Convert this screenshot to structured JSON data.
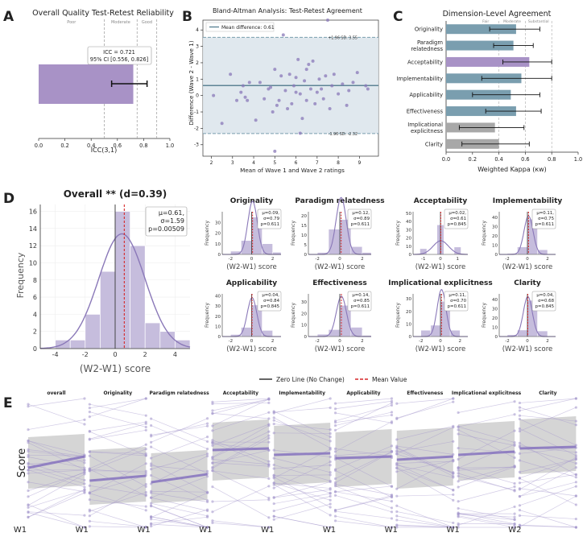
{
  "colors": {
    "purple": "#a892c6",
    "purple_dark": "#8a78b8",
    "purple_fill": "#c6bddd",
    "teal": "#7a9eaf",
    "gray": "#a8a8a8",
    "red": "#d62728",
    "band": "#dde6ec",
    "pair_fill": "#d0d0d0"
  },
  "panel_labels": {
    "a": "A",
    "b": "B",
    "c": "C",
    "d": "D",
    "e": "E"
  },
  "chart_data": [
    {
      "id": "A",
      "type": "bar",
      "title": "Overall Quality Test-Retest Reliability",
      "xlabel": "ICC(3,1)",
      "xlim": [
        0.0,
        1.0
      ],
      "xticks": [
        "0.0",
        "0.2",
        "0.4",
        "0.6",
        "0.8",
        "1.0"
      ],
      "zones": [
        {
          "label": "Poor",
          "from": 0.0,
          "to": 0.5
        },
        {
          "label": "Moderate",
          "from": 0.5,
          "to": 0.75
        },
        {
          "label": "Good",
          "from": 0.75,
          "to": 0.9
        }
      ],
      "zone_lines": [
        0.5,
        0.75,
        0.9
      ],
      "value": 0.721,
      "ci": [
        0.556,
        0.826
      ],
      "annotation": [
        "ICC = 0.721",
        "95% CI [0.556, 0.826]"
      ]
    },
    {
      "id": "B",
      "type": "scatter",
      "title": "Bland-Altman Analysis: Test-Retest Agreement",
      "xlabel": "Mean of Wave 1 and Wave 2 ratings",
      "ylabel": "Difference (Wave 2 - Wave 1)",
      "xlim": [
        1.6,
        9.9
      ],
      "ylim": [
        -3.7,
        4.6
      ],
      "xticks": [
        2,
        3,
        4,
        5,
        6,
        7,
        8,
        9
      ],
      "yticks": [
        -3,
        -2,
        -1,
        0,
        1,
        2,
        3,
        4
      ],
      "mean_diff": 0.61,
      "upper_loa": 3.55,
      "lower_loa": -2.32,
      "legend": "Mean difference: 0.61",
      "upper_label": "+1.96 SD: 3.55",
      "lower_label": "-1.96 SD: -2.32",
      "points": [
        [
          2.1,
          0.0
        ],
        [
          2.5,
          -1.7
        ],
        [
          2.9,
          1.3
        ],
        [
          3.2,
          -0.3
        ],
        [
          3.4,
          0.2
        ],
        [
          3.6,
          -0.1
        ],
        [
          3.8,
          0.8
        ],
        [
          3.7,
          -0.3
        ],
        [
          4.1,
          -1.5
        ],
        [
          4.3,
          0.8
        ],
        [
          4.5,
          -0.2
        ],
        [
          4.7,
          0.4
        ],
        [
          4.9,
          -1.0
        ],
        [
          4.8,
          0.5
        ],
        [
          5.0,
          1.6
        ],
        [
          5.1,
          -0.6
        ],
        [
          5.2,
          -0.3
        ],
        [
          5.3,
          1.2
        ],
        [
          5.4,
          3.7
        ],
        [
          5.5,
          0.3
        ],
        [
          5.6,
          -0.8
        ],
        [
          5.7,
          1.3
        ],
        [
          5.8,
          -0.5
        ],
        [
          5.9,
          0.6
        ],
        [
          6.0,
          1.1
        ],
        [
          6.0,
          0.2
        ],
        [
          6.1,
          2.2
        ],
        [
          6.2,
          0.1
        ],
        [
          6.3,
          -1.4
        ],
        [
          6.4,
          0.9
        ],
        [
          6.5,
          -0.3
        ],
        [
          6.6,
          1.9
        ],
        [
          6.7,
          0.4
        ],
        [
          6.8,
          2.1
        ],
        [
          6.9,
          -0.5
        ],
        [
          7.0,
          0.2
        ],
        [
          7.1,
          1.0
        ],
        [
          7.2,
          0.4
        ],
        [
          7.3,
          -0.2
        ],
        [
          7.4,
          1.2
        ],
        [
          7.5,
          4.6
        ],
        [
          7.6,
          -0.8
        ],
        [
          7.7,
          0.6
        ],
        [
          7.8,
          1.3
        ],
        [
          8.0,
          0.1
        ],
        [
          8.2,
          0.7
        ],
        [
          8.4,
          -0.6
        ],
        [
          8.5,
          0.3
        ],
        [
          8.7,
          0.8
        ],
        [
          8.9,
          1.4
        ],
        [
          9.3,
          0.6
        ],
        [
          9.4,
          0.4
        ],
        [
          5.0,
          -3.4
        ],
        [
          6.2,
          -2.3
        ],
        [
          6.5,
          1.6
        ],
        [
          3.5,
          0.6
        ]
      ]
    },
    {
      "id": "C",
      "type": "bar",
      "title": "Dimension-Level Agreement",
      "xlabel": "Weighted Kappa (κw)",
      "xlim": [
        0.0,
        1.0
      ],
      "xticks": [
        "0.0",
        "0.2",
        "0.4",
        "0.6",
        "0.8",
        "1.0"
      ],
      "zones": [
        {
          "label": "Fair",
          "at": 0.3
        },
        {
          "label": "Moderate",
          "at": 0.5
        },
        {
          "label": "Substantial",
          "at": 0.7
        }
      ],
      "zone_lines": [
        0.4,
        0.6,
        0.8
      ],
      "categories": [
        "Originality",
        "Paradigm\nrelatedness",
        "Acceptability",
        "Implementability",
        "Applicability",
        "Effectiveness",
        "Implicational\nexplicitness",
        "Clarity"
      ],
      "values": [
        0.53,
        0.51,
        0.63,
        0.57,
        0.49,
        0.53,
        0.37,
        0.4
      ],
      "ci_low": [
        0.33,
        0.36,
        0.43,
        0.27,
        0.2,
        0.3,
        0.1,
        0.12
      ],
      "ci_high": [
        0.71,
        0.66,
        0.8,
        0.8,
        0.71,
        0.72,
        0.59,
        0.63
      ],
      "colors": [
        "teal",
        "teal",
        "purple",
        "teal",
        "teal",
        "teal",
        "gray",
        "gray"
      ]
    },
    {
      "id": "D_main",
      "type": "bar",
      "title": "Overall ** (d=0.39)",
      "xlabel": "(W2-W1) score",
      "ylabel": "Frequency",
      "xlim": [
        -5,
        5
      ],
      "ylim": [
        0,
        16.8
      ],
      "xticks": [
        -4,
        -2,
        0,
        2,
        4
      ],
      "yticks": [
        0,
        2,
        4,
        6,
        8,
        10,
        12,
        14,
        16
      ],
      "bins": [
        [
          -4,
          -3,
          1
        ],
        [
          -3,
          -2,
          1
        ],
        [
          -2,
          -1,
          4
        ],
        [
          -1,
          0,
          9
        ],
        [
          0,
          1,
          16
        ],
        [
          1,
          2,
          12
        ],
        [
          2,
          3,
          3
        ],
        [
          3,
          4,
          2
        ],
        [
          4,
          5,
          1
        ]
      ],
      "mean": 0.61,
      "stats": [
        "μ=0.61,",
        "σ=1.59",
        "p=0.00509"
      ]
    },
    {
      "id": "D_small",
      "type": "bar",
      "xlabel": "(W2-W1) score",
      "ylabel": "Frequency",
      "panels": [
        {
          "title": "Originality",
          "xlim": [
            -2.8,
            2.8
          ],
          "xticks": [
            -2,
            0,
            2
          ],
          "ymax": 40,
          "yticks": [
            0,
            10,
            20,
            30
          ],
          "bins": [
            [
              -2,
              -1,
              3
            ],
            [
              -1,
              0,
              13
            ],
            [
              0,
              1,
              35
            ],
            [
              1,
              2,
              10
            ],
            [
              2,
              2.8,
              2
            ]
          ],
          "stats": [
            "μ=0.09,",
            "σ=0.79",
            "p=0.611"
          ],
          "mean": 0.09
        },
        {
          "title": "Paradigm relatedness",
          "xlim": [
            -2.8,
            2.8
          ],
          "xticks": [
            -2,
            0,
            2
          ],
          "ymax": 22,
          "yticks": [
            0,
            5,
            10,
            15,
            20
          ],
          "bins": [
            [
              -2,
              -1,
              1
            ],
            [
              -1,
              0,
              13
            ],
            [
              0,
              1,
              18
            ],
            [
              1,
              2,
              4
            ],
            [
              2,
              2.8,
              1
            ]
          ],
          "stats": [
            "μ=0.12,",
            "σ=0.89",
            "p=0.611"
          ],
          "mean": 0.12
        },
        {
          "title": "Acceptability",
          "xlim": [
            -1.6,
            1.6
          ],
          "xticks": [
            -1,
            0,
            1
          ],
          "ymax": 52,
          "yticks": [
            0,
            10,
            20,
            30,
            40,
            50
          ],
          "bins": [
            [
              -1.2,
              -0.8,
              7
            ],
            [
              -0.2,
              0.2,
              36
            ],
            [
              0.8,
              1.2,
              9
            ]
          ],
          "stats": [
            "μ=0.02,",
            "σ=0.61",
            "p=0.845"
          ],
          "mean": 0.02
        },
        {
          "title": "Implementability",
          "xlim": [
            -2.8,
            2.8
          ],
          "xticks": [
            -2,
            0,
            2
          ],
          "ymax": 46,
          "yticks": [
            0,
            10,
            20,
            30,
            40
          ],
          "bins": [
            [
              -2,
              -1,
              1
            ],
            [
              -1,
              0,
              8
            ],
            [
              0,
              1,
              38
            ],
            [
              1,
              2,
              5
            ]
          ],
          "stats": [
            "μ=0.11,",
            "σ=0.75",
            "p=0.611"
          ],
          "mean": 0.11
        },
        {
          "title": "Applicability",
          "xlim": [
            -2.8,
            2.8
          ],
          "xticks": [
            -2,
            0,
            2
          ],
          "ymax": 42,
          "yticks": [
            0,
            10,
            20,
            30,
            40
          ],
          "bins": [
            [
              -2,
              -1,
              2
            ],
            [
              -1,
              0,
              9
            ],
            [
              0,
              1,
              31
            ],
            [
              1,
              2,
              6
            ]
          ],
          "stats": [
            "μ=0.04,",
            "σ=0.84",
            "p=0.845"
          ],
          "mean": 0.04
        },
        {
          "title": "Effectiveness",
          "xlim": [
            -2.8,
            2.8
          ],
          "xticks": [
            -2,
            0,
            2
          ],
          "ymax": 37,
          "yticks": [
            0,
            10,
            20,
            30
          ],
          "bins": [
            [
              -2,
              -1,
              2
            ],
            [
              -1,
              0,
              6
            ],
            [
              0,
              1,
              27
            ],
            [
              1,
              2,
              8
            ],
            [
              2,
              2.8,
              1
            ]
          ],
          "stats": [
            "μ=0.14,",
            "σ=0.85",
            "p=0.611"
          ],
          "mean": 0.14
        },
        {
          "title": "Implicational explicitness",
          "xlim": [
            -2.8,
            2.8
          ],
          "xticks": [
            -2,
            0,
            2
          ],
          "ymax": 34,
          "yticks": [
            0,
            10,
            20,
            30
          ],
          "bins": [
            [
              -2,
              -1,
              5
            ],
            [
              -1,
              0,
              9
            ],
            [
              0,
              1,
              28
            ],
            [
              1,
              2,
              5
            ]
          ],
          "stats": [
            "μ=0.11,",
            "σ=0.70",
            "p=0.611"
          ],
          "mean": 0.11
        },
        {
          "title": "Clarity",
          "xlim": [
            -2.8,
            2.8
          ],
          "xticks": [
            -2,
            0,
            2
          ],
          "ymax": 46,
          "yticks": [
            0,
            10,
            20,
            30,
            40
          ],
          "bins": [
            [
              -2,
              -1,
              2
            ],
            [
              -1,
              0,
              7
            ],
            [
              0,
              1,
              39
            ],
            [
              1,
              2,
              6
            ]
          ],
          "stats": [
            "μ=0.04,",
            "σ=0.68",
            "p=0.845"
          ],
          "mean": 0.04
        }
      ]
    },
    {
      "id": "D_legend",
      "type": "legend",
      "entries": [
        "Zero Line (No Change)",
        "Mean Value"
      ]
    },
    {
      "id": "E",
      "type": "line",
      "ylabel": "Score",
      "panels": [
        {
          "title": "overall",
          "box": [
            3.4,
            6.6
          ],
          "w1_mean": 4.7,
          "w2_mean": 5.4
        },
        {
          "title": "Originality",
          "box": [
            2.4,
            5.8
          ],
          "w1_mean": 3.9,
          "w2_mean": 4.2
        },
        {
          "title": "Paradigm relatedness",
          "box": [
            2.5,
            5.6
          ],
          "w1_mean": 3.8,
          "w2_mean": 4.3
        },
        {
          "title": "Acceptability",
          "box": [
            3.9,
            7.5
          ],
          "w1_mean": 5.8,
          "w2_mean": 5.9
        },
        {
          "title": "Implementability",
          "box": [
            3.6,
            7.3
          ],
          "w1_mean": 5.5,
          "w2_mean": 5.6
        },
        {
          "title": "Applicability",
          "box": [
            3.5,
            6.9
          ],
          "w1_mean": 5.3,
          "w2_mean": 5.4
        },
        {
          "title": "Effectiveness",
          "box": [
            3.4,
            7.0
          ],
          "w1_mean": 5.2,
          "w2_mean": 5.4
        },
        {
          "title": "Implicational explicitness",
          "box": [
            3.9,
            7.4
          ],
          "w1_mean": 5.5,
          "w2_mean": 5.7
        },
        {
          "title": "Clarity",
          "box": [
            4.3,
            7.7
          ],
          "w1_mean": 5.9,
          "w2_mean": 6.0
        }
      ],
      "x_labels": [
        "W1",
        "W1",
        "W1",
        "W1",
        "W1",
        "W1",
        "W1",
        "W1",
        "W2"
      ]
    }
  ]
}
